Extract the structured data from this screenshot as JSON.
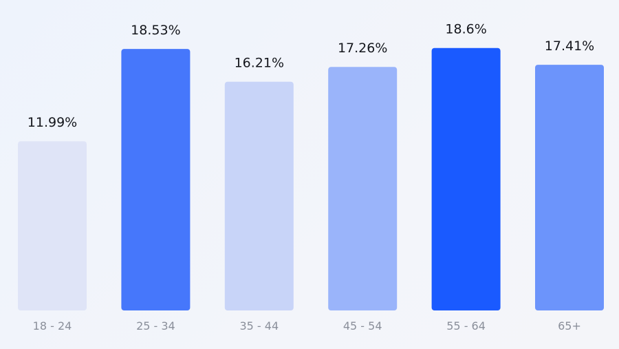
{
  "chart_data": {
    "type": "bar",
    "categories": [
      "18 - 24",
      "25 - 34",
      "35 - 44",
      "45 - 54",
      "55 - 64",
      "65+"
    ],
    "values": [
      11.99,
      18.53,
      16.21,
      17.26,
      18.6,
      17.41
    ],
    "data_labels": [
      "11.99%",
      "18.53%",
      "16.21%",
      "17.26%",
      "18.6%",
      "17.41%"
    ],
    "colors": [
      "#dfe4f7",
      "#4677fb",
      "#c8d4f8",
      "#9ab4fa",
      "#1a5aff",
      "#6c94fb"
    ],
    "unit": "%",
    "ylim": [
      0,
      19
    ],
    "grid": false,
    "legend": "none"
  }
}
